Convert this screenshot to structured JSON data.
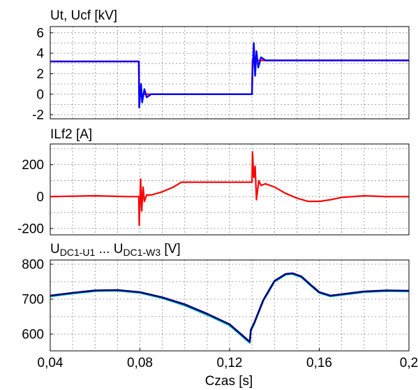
{
  "figure": {
    "xlabel": "Czas [s]"
  },
  "chart_data": [
    {
      "type": "line",
      "title": "Ut, Ucf  [kV]",
      "xlim": [
        0.04,
        0.2
      ],
      "ylim": [
        -2.4,
        6.6
      ],
      "yticks": [
        {
          "value": 6,
          "label": "6"
        },
        {
          "value": 4,
          "label": "4"
        },
        {
          "value": 2,
          "label": "2"
        },
        {
          "value": 0,
          "label": "0"
        },
        {
          "value": -2,
          "label": "-2"
        }
      ],
      "grid": true,
      "series": [
        {
          "color": "#ff0000",
          "x": [
            0.04,
            0.0795,
            0.0797,
            0.13,
            0.1302,
            0.2
          ],
          "y": [
            3.2,
            3.2,
            0.0,
            0.0,
            3.3,
            3.3
          ]
        },
        {
          "color": "#0000ff",
          "x": [
            0.04,
            0.0795,
            0.0797,
            0.0805,
            0.081,
            0.082,
            0.083,
            0.085,
            0.13,
            0.1302,
            0.1308,
            0.1314,
            0.132,
            0.1328,
            0.134,
            0.136,
            0.2
          ],
          "y": [
            3.2,
            3.2,
            -1.3,
            1.0,
            -0.8,
            0.5,
            -0.3,
            0.0,
            0.0,
            2.1,
            5.0,
            1.8,
            4.2,
            2.6,
            3.6,
            3.3,
            3.3
          ]
        }
      ]
    },
    {
      "type": "line",
      "title": "ILf2 [A]",
      "xlim": [
        0.04,
        0.2
      ],
      "ylim": [
        -240,
        330
      ],
      "yticks": [
        {
          "value": 200,
          "label": "200"
        },
        {
          "value": 0,
          "label": "0"
        },
        {
          "value": -200,
          "label": "-200"
        }
      ],
      "grid": true,
      "series": [
        {
          "color": "#ff0000",
          "x": [
            0.04,
            0.06,
            0.075,
            0.0795,
            0.0797,
            0.0803,
            0.0808,
            0.0814,
            0.082,
            0.083,
            0.085,
            0.09,
            0.095,
            0.0985,
            0.13,
            0.1302,
            0.1308,
            0.1314,
            0.132,
            0.133,
            0.134,
            0.136,
            0.14,
            0.145,
            0.15,
            0.155,
            0.16,
            0.165,
            0.17,
            0.175,
            0.18,
            0.19,
            0.2
          ],
          "y": [
            0,
            5,
            0,
            0,
            -180,
            110,
            -90,
            60,
            -30,
            10,
            10,
            30,
            60,
            90,
            90,
            280,
            120,
            190,
            -20,
            100,
            70,
            80,
            60,
            20,
            -10,
            -30,
            -30,
            -20,
            -5,
            0,
            5,
            0,
            0
          ]
        }
      ]
    },
    {
      "type": "line",
      "title": "UDC1-U1 ... UDC1-W3 [V]",
      "title_parts": [
        {
          "text": "U",
          "sub": false
        },
        {
          "text": "DC1-U1",
          "sub": true
        },
        {
          "text": " ... U",
          "sub": false
        },
        {
          "text": "DC1-W3",
          "sub": true
        },
        {
          "text": " [V]",
          "sub": false
        }
      ],
      "xlim": [
        0.04,
        0.2
      ],
      "ylim": [
        552,
        812
      ],
      "yticks": [
        {
          "value": 800,
          "label": "800"
        },
        {
          "value": 700,
          "label": "700"
        },
        {
          "value": 600,
          "label": "600"
        }
      ],
      "xticks": [
        {
          "value": 0.04,
          "label": "0,04"
        },
        {
          "value": 0.08,
          "label": "0,08"
        },
        {
          "value": 0.12,
          "label": "0,12"
        },
        {
          "value": 0.16,
          "label": "0,16"
        },
        {
          "value": 0.2,
          "label": "0,2"
        }
      ],
      "grid": true,
      "series": [
        {
          "color": "#00c0a0",
          "x": [
            0.04,
            0.05,
            0.06,
            0.07,
            0.08,
            0.09,
            0.1,
            0.11,
            0.12,
            0.129,
            0.1295,
            0.131,
            0.135,
            0.14,
            0.145,
            0.148,
            0.152,
            0.156,
            0.16,
            0.165,
            0.17,
            0.18,
            0.19,
            0.2
          ],
          "y": [
            708,
            716,
            723,
            724,
            718,
            703,
            682,
            655,
            625,
            575,
            610,
            630,
            695,
            750,
            770,
            772,
            763,
            740,
            718,
            708,
            712,
            720,
            723,
            722
          ]
        },
        {
          "color": "#000080",
          "x": [
            0.04,
            0.05,
            0.06,
            0.07,
            0.08,
            0.09,
            0.1,
            0.11,
            0.12,
            0.129,
            0.1295,
            0.131,
            0.135,
            0.14,
            0.145,
            0.148,
            0.152,
            0.156,
            0.16,
            0.165,
            0.17,
            0.18,
            0.19,
            0.2
          ],
          "y": [
            710,
            718,
            725,
            726,
            720,
            705,
            685,
            658,
            628,
            578,
            612,
            632,
            697,
            752,
            772,
            774,
            765,
            742,
            720,
            710,
            714,
            722,
            725,
            724
          ]
        }
      ]
    }
  ]
}
